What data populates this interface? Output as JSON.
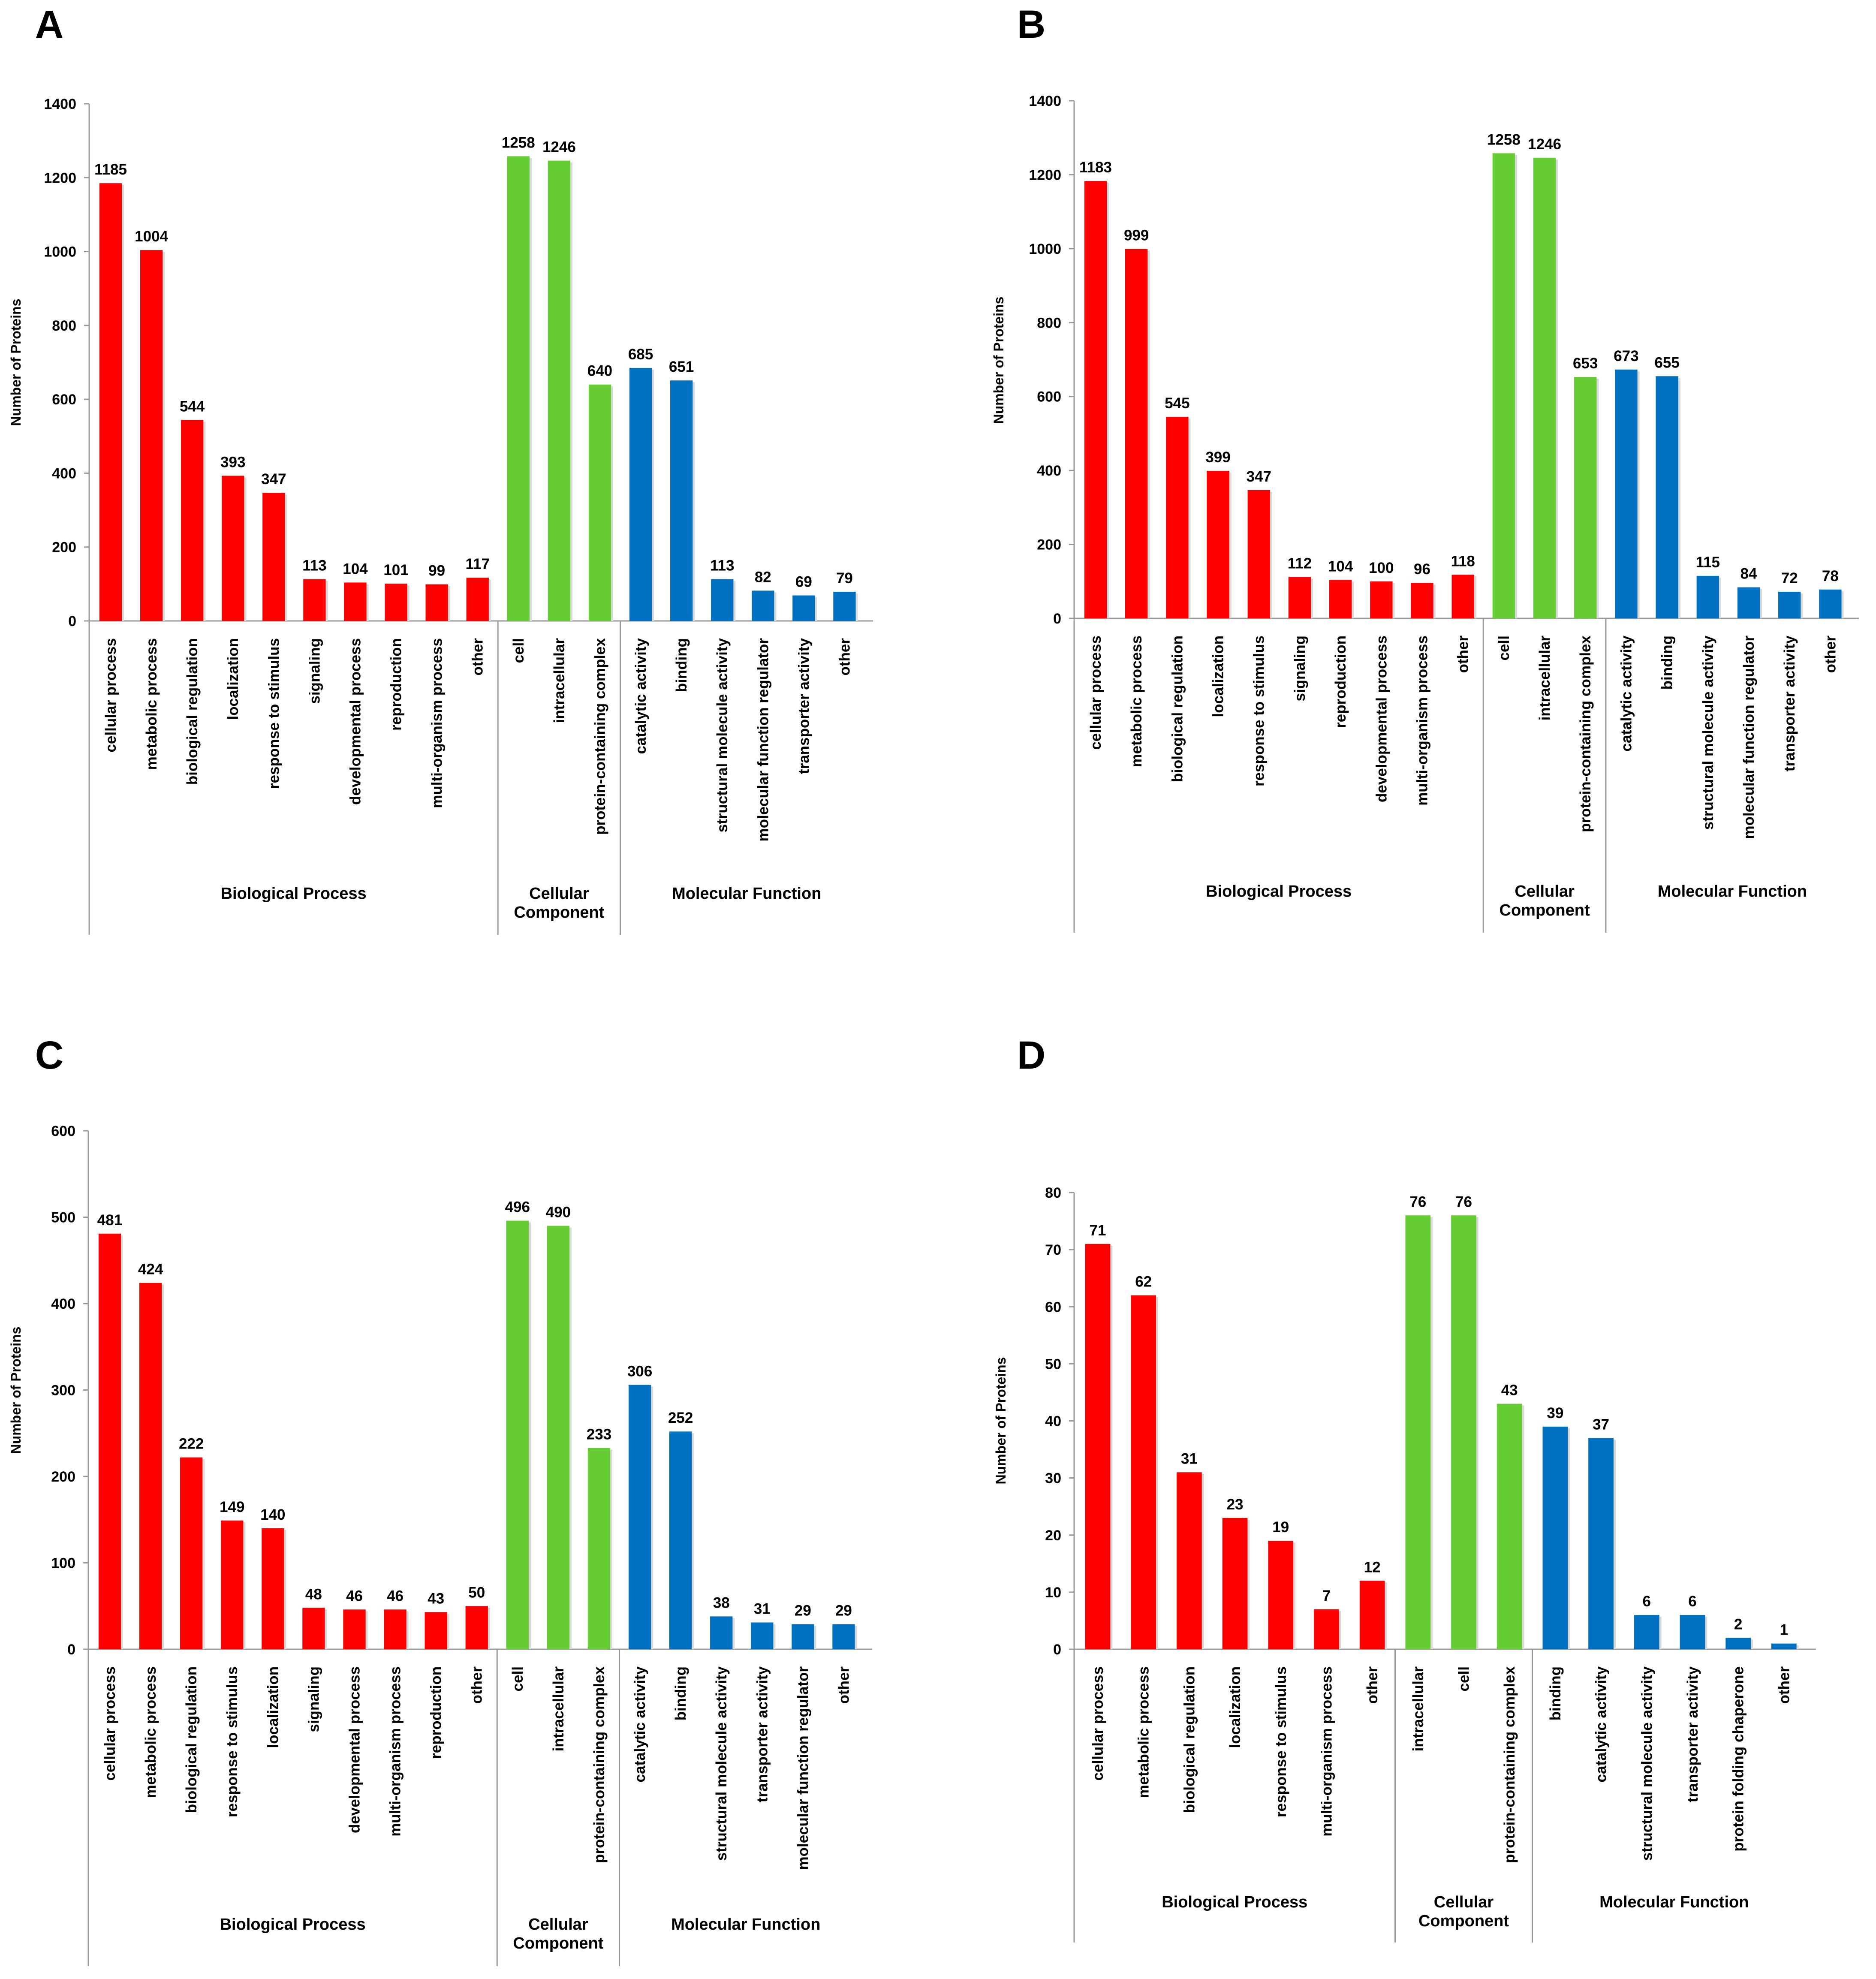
{
  "colors": {
    "biological": "#ff0000",
    "cellular": "#66cc33",
    "molecular": "#0070c0",
    "axis": "#999999"
  },
  "chart_data": [
    {
      "type": "bar",
      "panel": "A",
      "ylabel": "Number of Proteins",
      "ylim": [
        0,
        1400
      ],
      "yticks": [
        "0",
        "200",
        "400",
        "600",
        "800",
        "1000",
        "1200",
        "1400"
      ],
      "groups": [
        {
          "label": [
            "Biological Process"
          ],
          "color": "biological",
          "categories": [
            "cellular process",
            "metabolic process",
            "biological regulation",
            "localization",
            "response to stimulus",
            "signaling",
            "developmental process",
            "reproduction",
            "multi-organism process",
            "other"
          ],
          "values": [
            1185,
            1004,
            544,
            393,
            347,
            113,
            104,
            101,
            99,
            117
          ]
        },
        {
          "label": [
            "Cellular",
            "Component"
          ],
          "color": "cellular",
          "categories": [
            "cell",
            "intracellular",
            "protein-containing complex"
          ],
          "values": [
            1258,
            1246,
            640
          ]
        },
        {
          "label": [
            "Molecular Function"
          ],
          "color": "molecular",
          "categories": [
            "catalytic activity",
            "binding",
            "structural molecule activity",
            "molecular function regulator",
            "transporter activity",
            "other"
          ],
          "values": [
            685,
            651,
            113,
            82,
            69,
            79
          ]
        }
      ]
    },
    {
      "type": "bar",
      "panel": "B",
      "ylabel": "Number of Proteins",
      "ylim": [
        0,
        1400
      ],
      "yticks": [
        "0",
        "200",
        "400",
        "600",
        "800",
        "1000",
        "1200",
        "1400"
      ],
      "groups": [
        {
          "label": [
            "Biological Process"
          ],
          "color": "biological",
          "categories": [
            "cellular process",
            "metabolic process",
            "biological regulation",
            "localization",
            "response to stimulus",
            "signaling",
            "reproduction",
            "developmental process",
            "multi-organism process",
            "other"
          ],
          "values": [
            1183,
            999,
            545,
            399,
            347,
            112,
            104,
            100,
            96,
            118
          ]
        },
        {
          "label": [
            "Cellular",
            "Component"
          ],
          "color": "cellular",
          "categories": [
            "cell",
            "intracellular",
            "protein-containing complex"
          ],
          "values": [
            1258,
            1246,
            653
          ]
        },
        {
          "label": [
            "Molecular Function"
          ],
          "color": "molecular",
          "categories": [
            "catalytic activity",
            "binding",
            "structural molecule activity",
            "molecular function regulator",
            "transporter activity",
            "other"
          ],
          "values": [
            673,
            655,
            115,
            84,
            72,
            78
          ]
        }
      ]
    },
    {
      "type": "bar",
      "panel": "C",
      "ylabel": "Number of Proteins",
      "ylim": [
        0,
        600
      ],
      "yticks": [
        "0",
        "100",
        "200",
        "300",
        "400",
        "500",
        "600"
      ],
      "groups": [
        {
          "label": [
            "Biological Process"
          ],
          "color": "biological",
          "categories": [
            "cellular process",
            "metabolic process",
            "biological regulation",
            "response to stimulus",
            "localization",
            "signaling",
            "developmental process",
            "multi-organism process",
            "reproduction",
            "other"
          ],
          "values": [
            481,
            424,
            222,
            149,
            140,
            48,
            46,
            46,
            43,
            50
          ]
        },
        {
          "label": [
            "Cellular",
            "Component"
          ],
          "color": "cellular",
          "categories": [
            "cell",
            "intracellular",
            "protein-containing complex"
          ],
          "values": [
            496,
            490,
            233
          ]
        },
        {
          "label": [
            "Molecular Function"
          ],
          "color": "molecular",
          "categories": [
            "catalytic activity",
            "binding",
            "structural molecule activity",
            "transporter activity",
            "molecular function regulator",
            "other"
          ],
          "values": [
            306,
            252,
            38,
            31,
            29,
            29
          ]
        }
      ]
    },
    {
      "type": "bar",
      "panel": "D",
      "ylabel": "Number of Proteins",
      "ylim": [
        0,
        80
      ],
      "yticks": [
        "0",
        "10",
        "20",
        "30",
        "40",
        "50",
        "60",
        "70",
        "80"
      ],
      "groups": [
        {
          "label": [
            "Biological Process"
          ],
          "color": "biological",
          "categories": [
            "cellular process",
            "metabolic process",
            "biological regulation",
            "localization",
            "response to stimulus",
            "multi-organism process",
            "other"
          ],
          "values": [
            71,
            62,
            31,
            23,
            19,
            7,
            12
          ]
        },
        {
          "label": [
            "Cellular",
            "Component"
          ],
          "color": "cellular",
          "categories": [
            "intracellular",
            "cell",
            "protein-containing complex"
          ],
          "values": [
            76,
            76,
            43
          ]
        },
        {
          "label": [
            "Molecular Function"
          ],
          "color": "molecular",
          "categories": [
            "binding",
            "catalytic activity",
            "structural molecule activity",
            "transporter activity",
            "protein folding chaperone",
            "other"
          ],
          "values": [
            39,
            37,
            6,
            6,
            2,
            1
          ]
        }
      ]
    }
  ]
}
